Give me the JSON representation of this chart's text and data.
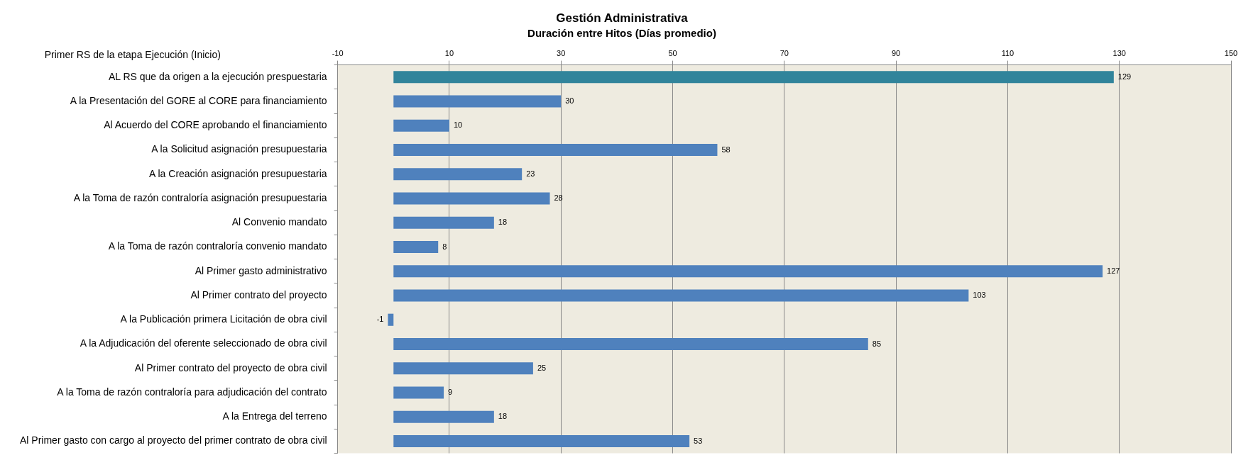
{
  "chart_data": {
    "type": "bar",
    "orientation": "horizontal",
    "title": "Gestión Administrativa",
    "subtitle": "Duración entre Hitos (Días promedio)",
    "ylabel": "Primer RS de la etapa Ejecución (Inicio)",
    "categories": [
      "AL RS que da origen a la ejecución prespuestaria",
      "A la Presentación del GORE al CORE para financiamiento",
      "Al Acuerdo del CORE aprobando el financiamiento",
      "A la Solicitud asignación presupuestaria",
      "A la Creación asignación presupuestaria",
      "A la Toma de razón contraloría asignación presupuestaria",
      "Al Convenio mandato",
      "A la Toma de razón contraloría convenio mandato",
      "Al Primer gasto administrativo",
      "Al Primer contrato del proyecto",
      "A la Publicación primera Licitación de obra civil",
      "A la Adjudicación del oferente seleccionado de obra civil",
      "Al Primer contrato del proyecto de obra civil",
      "A la Toma de razón contraloría para adjudicación del contrato",
      "A la Entrega del terreno",
      "Al Primer gasto con cargo al proyecto del primer contrato de obra civil"
    ],
    "values": [
      129,
      30,
      10,
      58,
      23,
      28,
      18,
      8,
      127,
      103,
      -1,
      85,
      25,
      9,
      18,
      53
    ],
    "colors": [
      "#31849b",
      "#4f81bd",
      "#4f81bd",
      "#4f81bd",
      "#4f81bd",
      "#4f81bd",
      "#4f81bd",
      "#4f81bd",
      "#4f81bd",
      "#4f81bd",
      "#4f81bd",
      "#4f81bd",
      "#4f81bd",
      "#4f81bd",
      "#4f81bd",
      "#4f81bd"
    ],
    "xlim": [
      -10,
      150
    ],
    "xticks": [
      -10,
      10,
      30,
      50,
      70,
      90,
      110,
      130,
      150
    ],
    "grid": "x",
    "data_labels": true,
    "legend": false
  }
}
